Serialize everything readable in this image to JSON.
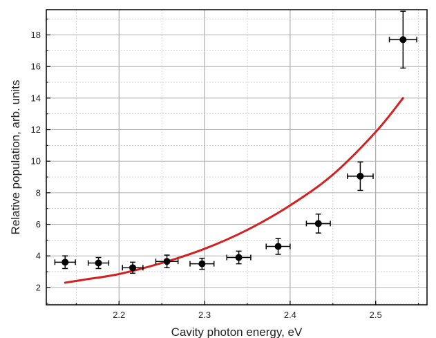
{
  "chart_data": {
    "type": "scatter",
    "xlabel": "Cavity photon energy, eV",
    "ylabel": "Relative population, arb. units",
    "xlim": [
      2.115,
      2.56
    ],
    "ylim": [
      0.9,
      19.6
    ],
    "x_ticks": [
      2.2,
      2.3,
      2.4,
      2.5
    ],
    "x_tick_labels": [
      "2.2",
      "2.3",
      "2.4",
      "2.5"
    ],
    "y_ticks": [
      2,
      4,
      6,
      8,
      10,
      12,
      14,
      16,
      18
    ],
    "y_tick_labels": [
      "2",
      "4",
      "6",
      "8",
      "10",
      "12",
      "14",
      "16",
      "18"
    ],
    "grid": true,
    "points": [
      {
        "x": 2.137,
        "y": 3.6,
        "xerr": 0.012,
        "yerr": 0.4
      },
      {
        "x": 2.176,
        "y": 3.55,
        "xerr": 0.012,
        "yerr": 0.35
      },
      {
        "x": 2.216,
        "y": 3.25,
        "xerr": 0.012,
        "yerr": 0.35
      },
      {
        "x": 2.256,
        "y": 3.65,
        "xerr": 0.013,
        "yerr": 0.4
      },
      {
        "x": 2.297,
        "y": 3.5,
        "xerr": 0.014,
        "yerr": 0.35
      },
      {
        "x": 2.34,
        "y": 3.9,
        "xerr": 0.014,
        "yerr": 0.4
      },
      {
        "x": 2.386,
        "y": 4.6,
        "xerr": 0.014,
        "yerr": 0.5
      },
      {
        "x": 2.433,
        "y": 6.05,
        "xerr": 0.014,
        "yerr": 0.6
      },
      {
        "x": 2.482,
        "y": 9.05,
        "xerr": 0.015,
        "yerr": 0.9
      },
      {
        "x": 2.532,
        "y": 17.7,
        "xerr": 0.016,
        "yerr": 1.8
      }
    ],
    "fit_curve": {
      "x": [
        2.137,
        2.16,
        2.2,
        2.25,
        2.3,
        2.35,
        2.4,
        2.45,
        2.5,
        2.532
      ],
      "y": [
        2.3,
        2.5,
        2.85,
        3.55,
        4.45,
        5.65,
        7.2,
        9.15,
        11.85,
        14.0
      ]
    },
    "colors": {
      "points": "#000000",
      "fit": "#d42020",
      "grid": "#c8c8c8"
    }
  }
}
